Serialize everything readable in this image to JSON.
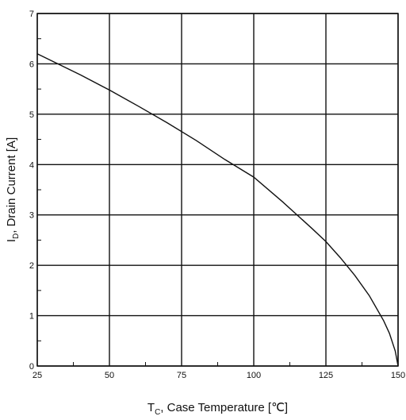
{
  "chart_data": {
    "type": "line",
    "xlabel": {
      "main": "T",
      "sub": "C",
      "rest": ", Case Temperature [℃]"
    },
    "ylabel": {
      "main": "I",
      "sub": "D",
      "rest": ", Drain Current [A]"
    },
    "xlim": [
      25,
      150
    ],
    "ylim": [
      0,
      7
    ],
    "x_ticks": [
      25,
      50,
      75,
      100,
      125,
      150
    ],
    "y_ticks": [
      0,
      1,
      2,
      3,
      4,
      5,
      6,
      7
    ],
    "x_tick_labels": [
      "25",
      "50",
      "75",
      "100",
      "125",
      "150"
    ],
    "y_tick_labels": [
      "0",
      "1",
      "2",
      "3",
      "4",
      "5",
      "6",
      "7"
    ],
    "grid": true,
    "series": [
      {
        "color": "#111111",
        "x": [
          25,
          30,
          40,
          50,
          60,
          70,
          80,
          90,
          100,
          110,
          120,
          125,
          130,
          135,
          140,
          145,
          147,
          149,
          150
        ],
        "y": [
          6.2,
          6.06,
          5.78,
          5.48,
          5.16,
          4.83,
          4.48,
          4.1,
          3.75,
          3.26,
          2.74,
          2.47,
          2.15,
          1.8,
          1.4,
          0.9,
          0.65,
          0.3,
          0.0
        ]
      }
    ]
  }
}
